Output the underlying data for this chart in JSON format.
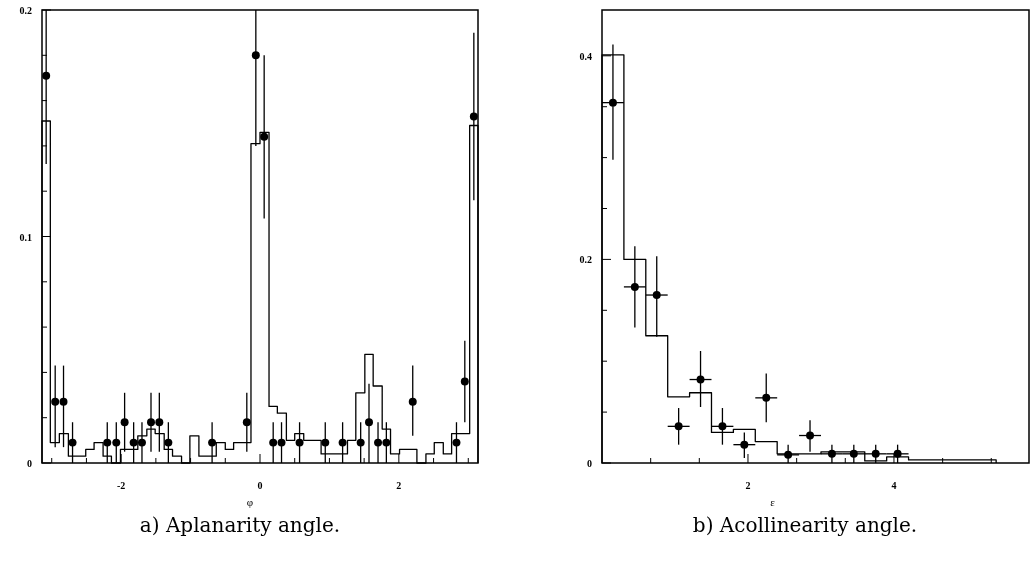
{
  "chart_data": [
    {
      "type": "histogram",
      "title": "a) Aplanarity angle.",
      "xlabel": "φ",
      "xlim": [
        -3.14,
        3.14
      ],
      "ylim": [
        0,
        0.2
      ],
      "xticks": [
        {
          "value": -3,
          "label": null
        },
        {
          "value": -2.5,
          "label": null
        },
        -2,
        {
          "value": -1.5,
          "label": null
        },
        {
          "value": -1,
          "label": null
        },
        {
          "value": -0.5,
          "label": null
        },
        0,
        {
          "value": 0.5,
          "label": null
        },
        {
          "value": 1,
          "label": null
        },
        {
          "value": 1.5,
          "label": null
        },
        2,
        {
          "value": 2.5,
          "label": null
        },
        {
          "value": 3,
          "label": null
        }
      ],
      "yticks": [
        0,
        {
          "value": 0.02,
          "label": null
        },
        {
          "value": 0.04,
          "label": null
        },
        {
          "value": 0.06,
          "label": null
        },
        {
          "value": 0.08,
          "label": null
        },
        0.1,
        {
          "value": 0.12,
          "label": null
        },
        {
          "value": 0.14,
          "label": null
        },
        {
          "value": 0.16,
          "label": null
        },
        {
          "value": 0.18,
          "label": null
        },
        0.2
      ],
      "marker": "circle",
      "series": [
        {
          "type": "histogram",
          "color": "#000000",
          "bins": [
            -3.14,
            -3.02,
            -2.89,
            -2.76,
            -2.64,
            -2.51,
            -2.39,
            -2.26,
            -2.14,
            -2.01,
            -1.88,
            -1.76,
            -1.63,
            -1.51,
            -1.38,
            -1.26,
            -1.13,
            -1.01,
            -0.88,
            -0.75,
            -0.63,
            -0.5,
            -0.38,
            -0.25,
            -0.13,
            0,
            0.13,
            0.25,
            0.38,
            0.5,
            0.63,
            0.75,
            0.88,
            1.01,
            1.13,
            1.26,
            1.38,
            1.51,
            1.63,
            1.76,
            1.88,
            2.01,
            2.14,
            2.26,
            2.39,
            2.51,
            2.64,
            2.76,
            2.89,
            3.02,
            3.14
          ],
          "values": [
            0.151,
            0.009,
            0.013,
            0.003,
            0.003,
            0.006,
            0.009,
            0.003,
            0,
            0.006,
            0.006,
            0.012,
            0.015,
            0.013,
            0.006,
            0.003,
            0,
            0.012,
            0.003,
            0.003,
            0.009,
            0.006,
            0.009,
            0.009,
            0.141,
            0.146,
            0.025,
            0.022,
            0.01,
            0.013,
            0.01,
            0.01,
            0.004,
            0.004,
            0.004,
            0.01,
            0.031,
            0.048,
            0.034,
            0.015,
            0.004,
            0.006,
            0.006,
            0,
            0.004,
            0.009,
            0.004,
            0.013,
            0.013,
            0.149
          ]
        },
        {
          "type": "scatter",
          "color": "#000000",
          "x": [
            -3.08,
            -2.95,
            -2.83,
            -2.7,
            -2.2,
            -2.07,
            -1.95,
            -1.82,
            -1.7,
            -1.57,
            -1.45,
            -1.32,
            -0.69,
            -0.19,
            -0.06,
            0.06,
            0.19,
            0.31,
            0.57,
            0.94,
            1.19,
            1.45,
            1.57,
            1.7,
            1.82,
            2.2,
            2.83,
            2.95,
            3.08
          ],
          "values": [
            0.171,
            0.027,
            0.027,
            0.009,
            0.009,
            0.009,
            0.018,
            0.009,
            0.009,
            0.018,
            0.018,
            0.009,
            0.009,
            0.018,
            0.18,
            0.144,
            0.009,
            0.009,
            0.009,
            0.009,
            0.009,
            0.009,
            0.018,
            0.009,
            0.009,
            0.027,
            0.009,
            0.036,
            0.153
          ],
          "errors": [
            [
              0.132,
              0.2
            ],
            [
              0.007,
              0.043
            ],
            [
              0.007,
              0.043
            ],
            [
              0,
              0.018
            ],
            [
              0,
              0.018
            ],
            [
              0,
              0.018
            ],
            [
              0.005,
              0.031
            ],
            [
              0,
              0.018
            ],
            [
              0,
              0.018
            ],
            [
              0.005,
              0.031
            ],
            [
              0.005,
              0.031
            ],
            [
              0,
              0.018
            ],
            [
              0,
              0.018
            ],
            [
              0.005,
              0.031
            ],
            [
              0.14,
              0.2
            ],
            [
              0.108,
              0.18
            ],
            [
              0,
              0.018
            ],
            [
              0,
              0.018
            ],
            [
              0,
              0.018
            ],
            [
              0,
              0.018
            ],
            [
              0,
              0.018
            ],
            [
              0,
              0.018
            ],
            [
              0,
              0.035
            ],
            [
              0,
              0.018
            ],
            [
              0,
              0.018
            ],
            [
              0.012,
              0.043
            ],
            [
              0,
              0.018
            ],
            [
              0.018,
              0.054
            ],
            [
              0.116,
              0.19
            ]
          ]
        }
      ]
    },
    {
      "type": "histogram",
      "title": "b) Acollinearity angle.",
      "xlabel": "ε",
      "xlim": [
        0,
        5.85
      ],
      "ylim": [
        0,
        0.445
      ],
      "xticks": [
        {
          "value": 0.667,
          "label": null
        },
        {
          "value": 1.333,
          "label": null
        },
        2,
        {
          "value": 2.667,
          "label": null
        },
        {
          "value": 3.333,
          "label": null
        },
        4,
        {
          "value": 4.667,
          "label": null
        },
        {
          "value": 5.333,
          "label": null
        }
      ],
      "yticks": [
        0,
        {
          "value": 0.05,
          "label": null
        },
        {
          "value": 0.1,
          "label": null
        },
        {
          "value": 0.15,
          "label": null
        },
        0.2,
        {
          "value": 0.25,
          "label": null
        },
        {
          "value": 0.3,
          "label": null
        },
        {
          "value": 0.35,
          "label": null
        },
        0.4
      ],
      "marker": "circle",
      "series": [
        {
          "type": "histogram",
          "color": "#000000",
          "bins": [
            0,
            0.3,
            0.6,
            0.9,
            1.2,
            1.5,
            1.8,
            2.1,
            2.4,
            2.7,
            3,
            3.3,
            3.6,
            3.9,
            4.2,
            4.5,
            4.8,
            5.1,
            5.4
          ],
          "values": [
            0.401,
            0.2,
            0.125,
            0.065,
            0.069,
            0.03,
            0.033,
            0.021,
            0.009,
            0.009,
            0.011,
            0.011,
            0.002,
            0.006,
            0.003,
            0.003,
            0.003,
            0.003
          ]
        },
        {
          "type": "scatter",
          "color": "#000000",
          "x": [
            0.15,
            0.45,
            0.75,
            1.05,
            1.35,
            1.65,
            1.95,
            2.25,
            2.55,
            2.85,
            3.15,
            3.45,
            3.75,
            4.05
          ],
          "values": [
            0.354,
            0.173,
            0.165,
            0.036,
            0.082,
            0.036,
            0.018,
            0.064,
            0.008,
            0.027,
            0.009,
            0.009,
            0.009,
            0.009
          ],
          "errors": [
            [
              0.298,
              0.411
            ],
            [
              0.133,
              0.213
            ],
            [
              0.124,
              0.203
            ],
            [
              0.018,
              0.054
            ],
            [
              0.055,
              0.11
            ],
            [
              0.018,
              0.054
            ],
            [
              0.005,
              0.03
            ],
            [
              0.04,
              0.088
            ],
            [
              0,
              0.018
            ],
            [
              0.011,
              0.042
            ],
            [
              0,
              0.018
            ],
            [
              0,
              0.018
            ],
            [
              0,
              0.018
            ],
            [
              0,
              0.018
            ]
          ],
          "xerrors": [
            0.15,
            0.15,
            0.15,
            0.15,
            0.15,
            0.15,
            0.15,
            0.15,
            0.15,
            0.15,
            0.15,
            0.15,
            0.15,
            0.15
          ]
        }
      ]
    }
  ]
}
